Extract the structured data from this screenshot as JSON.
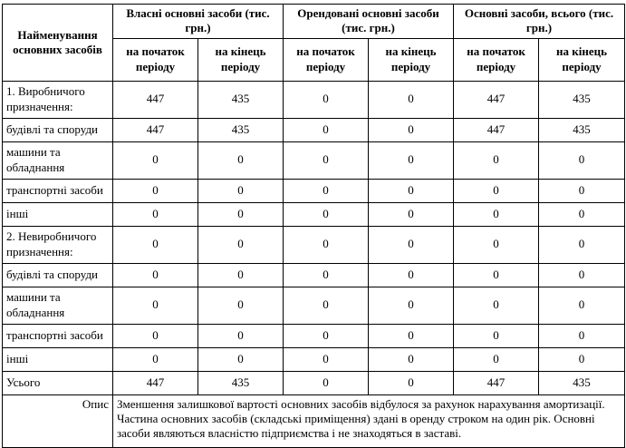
{
  "table": {
    "name_header": "Найменування основних засобів",
    "groups": [
      {
        "label": "Власні основні засоби (тис. грн.)"
      },
      {
        "label": "Орендовані основні засоби (тис. грн.)"
      },
      {
        "label": "Основні засоби, всього (тис. грн.)"
      }
    ],
    "subheaders": [
      "на початок періоду",
      "на кінець періоду"
    ],
    "rows": [
      {
        "name": "1. Виробничого призначення:",
        "two_line": true,
        "values": [
          "447",
          "435",
          "0",
          "0",
          "447",
          "435"
        ]
      },
      {
        "name": "будівлі та споруди",
        "two_line": false,
        "values": [
          "447",
          "435",
          "0",
          "0",
          "447",
          "435"
        ]
      },
      {
        "name": "машини та обладнання",
        "two_line": true,
        "values": [
          "0",
          "0",
          "0",
          "0",
          "0",
          "0"
        ]
      },
      {
        "name": "транспортні засоби",
        "two_line": false,
        "values": [
          "0",
          "0",
          "0",
          "0",
          "0",
          "0"
        ]
      },
      {
        "name": "інші",
        "two_line": false,
        "values": [
          "0",
          "0",
          "0",
          "0",
          "0",
          "0"
        ]
      },
      {
        "name": "2. Невиробничого призначення:",
        "two_line": true,
        "values": [
          "0",
          "0",
          "0",
          "0",
          "0",
          "0"
        ]
      },
      {
        "name": "будівлі та споруди",
        "two_line": false,
        "values": [
          "0",
          "0",
          "0",
          "0",
          "0",
          "0"
        ]
      },
      {
        "name": "машини та обладнання",
        "two_line": true,
        "values": [
          "0",
          "0",
          "0",
          "0",
          "0",
          "0"
        ]
      },
      {
        "name": "транспортні засоби",
        "two_line": false,
        "values": [
          "0",
          "0",
          "0",
          "0",
          "0",
          "0"
        ]
      },
      {
        "name": "інші",
        "two_line": false,
        "values": [
          "0",
          "0",
          "0",
          "0",
          "0",
          "0"
        ]
      },
      {
        "name": "Усього",
        "two_line": false,
        "values": [
          "447",
          "435",
          "0",
          "0",
          "447",
          "435"
        ]
      }
    ],
    "description_label": "Опис",
    "description_text": "Зменшення залишкової вартості основних засобів відбулося за рахунок нарахування амортизації. Частина основних засобів (складські приміщення)  здані в оренду строком на один рік.  Основні засоби являються власністю підприємства і не знаходяться в заставі."
  }
}
